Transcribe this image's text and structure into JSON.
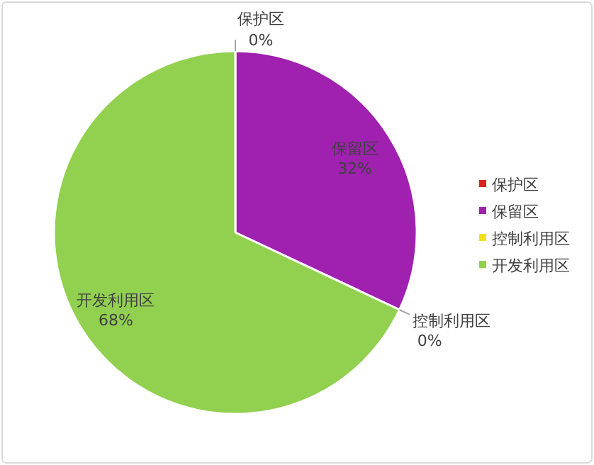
{
  "chart_data": {
    "type": "pie",
    "categories": [
      "保护区",
      "保留区",
      "控制利用区",
      "开发利用区"
    ],
    "values": [
      0,
      32,
      0,
      68
    ],
    "colors": [
      "#e02020",
      "#a020b0",
      "#f0e020",
      "#92d050"
    ],
    "value_labels": [
      "0%",
      "32%",
      "0%",
      "68%"
    ],
    "legend": "right"
  }
}
